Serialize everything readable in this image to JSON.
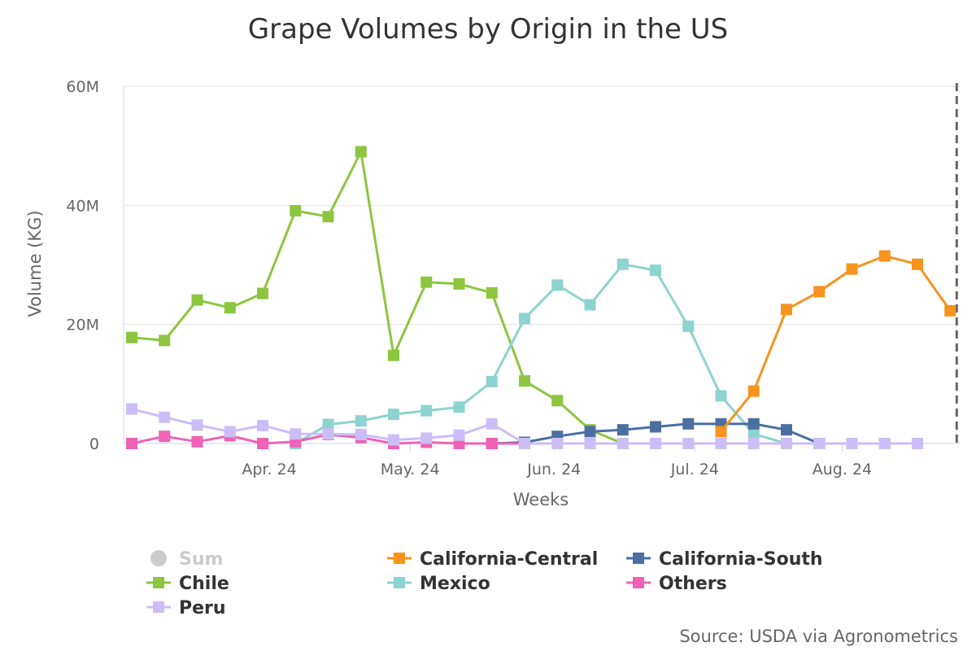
{
  "chart_data": {
    "type": "line",
    "title": "Grape Volumes by Origin in the US",
    "xlabel": "Weeks",
    "ylabel": "Volume (KG)",
    "credits": "Source: USDA via Agronometrics",
    "ylim": [
      0,
      60000000
    ],
    "y_ticks": [
      {
        "value": 0,
        "label": "0"
      },
      {
        "value": 20000000,
        "label": "20M"
      },
      {
        "value": 40000000,
        "label": "40M"
      },
      {
        "value": 60000000,
        "label": "60M"
      }
    ],
    "x_tick_labels": [
      "Apr. 24",
      "May. 24",
      "Jun. 24",
      "Jul. 24",
      "Aug. 24"
    ],
    "x_tick_positions": [
      4.2,
      8.5,
      12.9,
      17.2,
      21.7
    ],
    "x_axis_week_count": 26,
    "current_week_index": 25.2,
    "legend_position": "bottom",
    "series": [
      {
        "name": "Sum",
        "color": "#cccccc",
        "visible": false,
        "marker": "circle",
        "values": []
      },
      {
        "name": "California-Central",
        "color": "#f7931e",
        "marker": "square",
        "values": [
          null,
          null,
          null,
          null,
          null,
          null,
          null,
          null,
          null,
          null,
          null,
          null,
          null,
          null,
          null,
          null,
          null,
          null,
          2000000,
          8800000,
          22500000,
          25500000,
          29300000,
          31500000,
          30100000,
          22300000
        ]
      },
      {
        "name": "California-South",
        "color": "#4a6fa0",
        "marker": "square",
        "values": [
          null,
          null,
          null,
          null,
          null,
          null,
          null,
          null,
          null,
          null,
          null,
          0,
          200000,
          1200000,
          2000000,
          2300000,
          2800000,
          3300000,
          3300000,
          3300000,
          2300000,
          0,
          null,
          null,
          null,
          null
        ]
      },
      {
        "name": "Chile",
        "color": "#8cc63f",
        "marker": "square",
        "values": [
          17800000,
          17300000,
          24100000,
          22800000,
          25200000,
          39100000,
          38100000,
          49000000,
          14800000,
          27100000,
          26800000,
          25300000,
          10500000,
          7200000,
          2300000,
          0,
          null,
          null,
          null,
          null,
          null,
          null,
          null,
          null,
          null,
          null
        ]
      },
      {
        "name": "Mexico",
        "color": "#8dd3cf",
        "marker": "square",
        "values": [
          null,
          null,
          null,
          null,
          null,
          0,
          3200000,
          3800000,
          4900000,
          5500000,
          6100000,
          10400000,
          21000000,
          26600000,
          23300000,
          30100000,
          29100000,
          19700000,
          8000000,
          1600000,
          0,
          0,
          0,
          0,
          null,
          null
        ]
      },
      {
        "name": "Others",
        "color": "#f062b6",
        "marker": "square",
        "values": [
          0,
          1200000,
          300000,
          1300000,
          0,
          300000,
          1500000,
          1000000,
          0,
          200000,
          0,
          0,
          0,
          null,
          null,
          null,
          null,
          null,
          null,
          null,
          null,
          null,
          null,
          null,
          null,
          null
        ]
      },
      {
        "name": "Peru",
        "color": "#cdbdf7",
        "marker": "square",
        "values": [
          5800000,
          4400000,
          3100000,
          2000000,
          3000000,
          1600000,
          1600000,
          1500000,
          600000,
          900000,
          1400000,
          3300000,
          0,
          0,
          0,
          0,
          0,
          0,
          0,
          0,
          0,
          0,
          0,
          0,
          0,
          null
        ]
      }
    ]
  }
}
